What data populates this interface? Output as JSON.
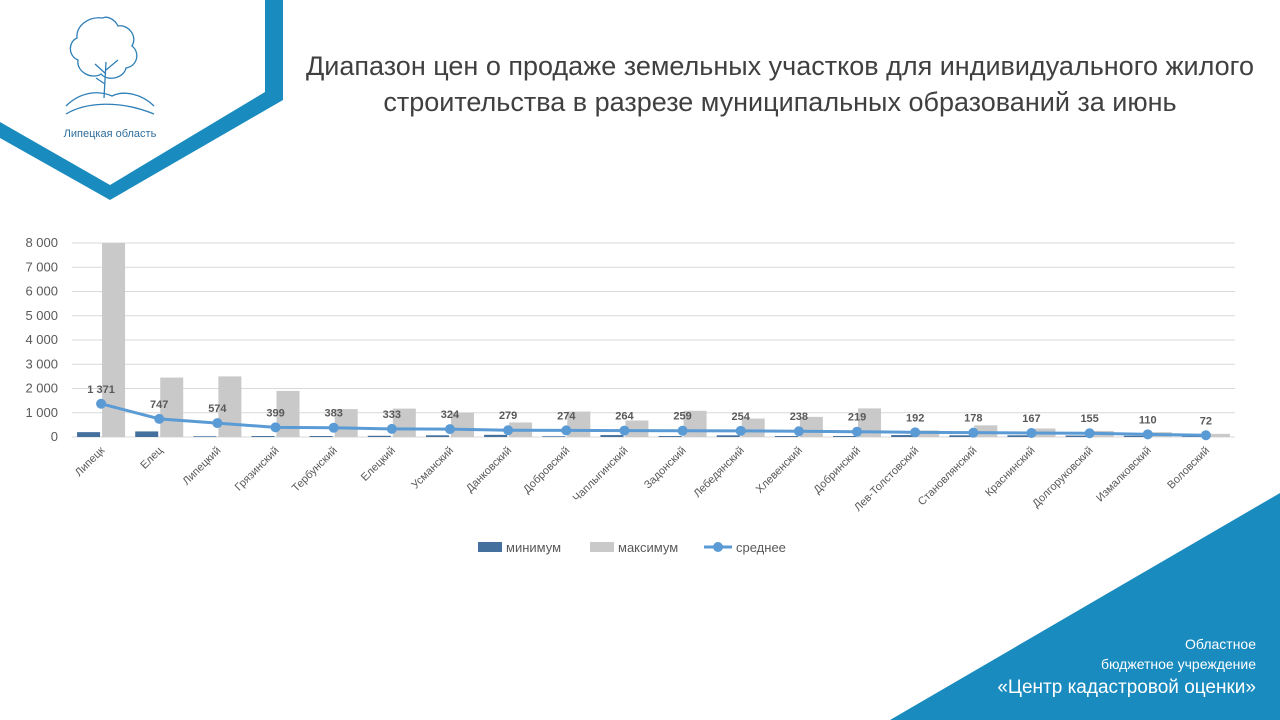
{
  "slide": {
    "title": "Диапазон цен о продаже земельных участков для индивидуального жилого строительства в разрезе муниципальных образований за июнь",
    "logo_caption": "Липецкая область",
    "logo_icon": "tree-logo-icon",
    "org_line1": "Областное",
    "org_line2": "бюджетное учреждение",
    "org_line3": "«Центр кадастровой оценки»",
    "accent_color": "#1a8bbf"
  },
  "chart_data": {
    "type": "bar",
    "categories": [
      "Липецк",
      "Елец",
      "Липецкий",
      "Грязинский",
      "Тербунский",
      "Елецкий",
      "Усманский",
      "Данковский",
      "Добровский",
      "Чаплыгинский",
      "Задонский",
      "Лебедянский",
      "Хлевенский",
      "Добринский",
      "Лев-Толстовский",
      "Становлянский",
      "Краснинский",
      "Долгоруковский",
      "Измалковский",
      "Воловский"
    ],
    "series": [
      {
        "name": "минимум",
        "type": "bar",
        "color": "#44709d",
        "values": [
          200,
          230,
          30,
          40,
          40,
          50,
          70,
          90,
          30,
          80,
          40,
          70,
          40,
          40,
          80,
          70,
          70,
          60,
          50,
          20
        ]
      },
      {
        "name": "максимум",
        "type": "bar",
        "color": "#c9c9c9",
        "values": [
          8000,
          2450,
          2500,
          1900,
          1150,
          1170,
          1000,
          600,
          1050,
          680,
          1080,
          760,
          830,
          1180,
          270,
          480,
          350,
          250,
          200,
          130
        ]
      },
      {
        "name": "среднее",
        "type": "line",
        "color": "#5b9bd5",
        "values": [
          1371,
          747,
          574,
          399,
          383,
          333,
          324,
          279,
          274,
          264,
          259,
          254,
          238,
          219,
          192,
          178,
          167,
          155,
          110,
          72
        ],
        "labels": [
          "1 371",
          "747",
          "574",
          "399",
          "383",
          "333",
          "324",
          "279",
          "274",
          "264",
          "259",
          "254",
          "238",
          "219",
          "192",
          "178",
          "167",
          "155",
          "110",
          "72"
        ]
      }
    ],
    "yticks": [
      "0",
      "1 000",
      "2 000",
      "3 000",
      "4 000",
      "5 000",
      "6 000",
      "7 000",
      "8 000"
    ],
    "ylim": [
      0,
      8000
    ],
    "grid": true,
    "legend": "bottom"
  }
}
